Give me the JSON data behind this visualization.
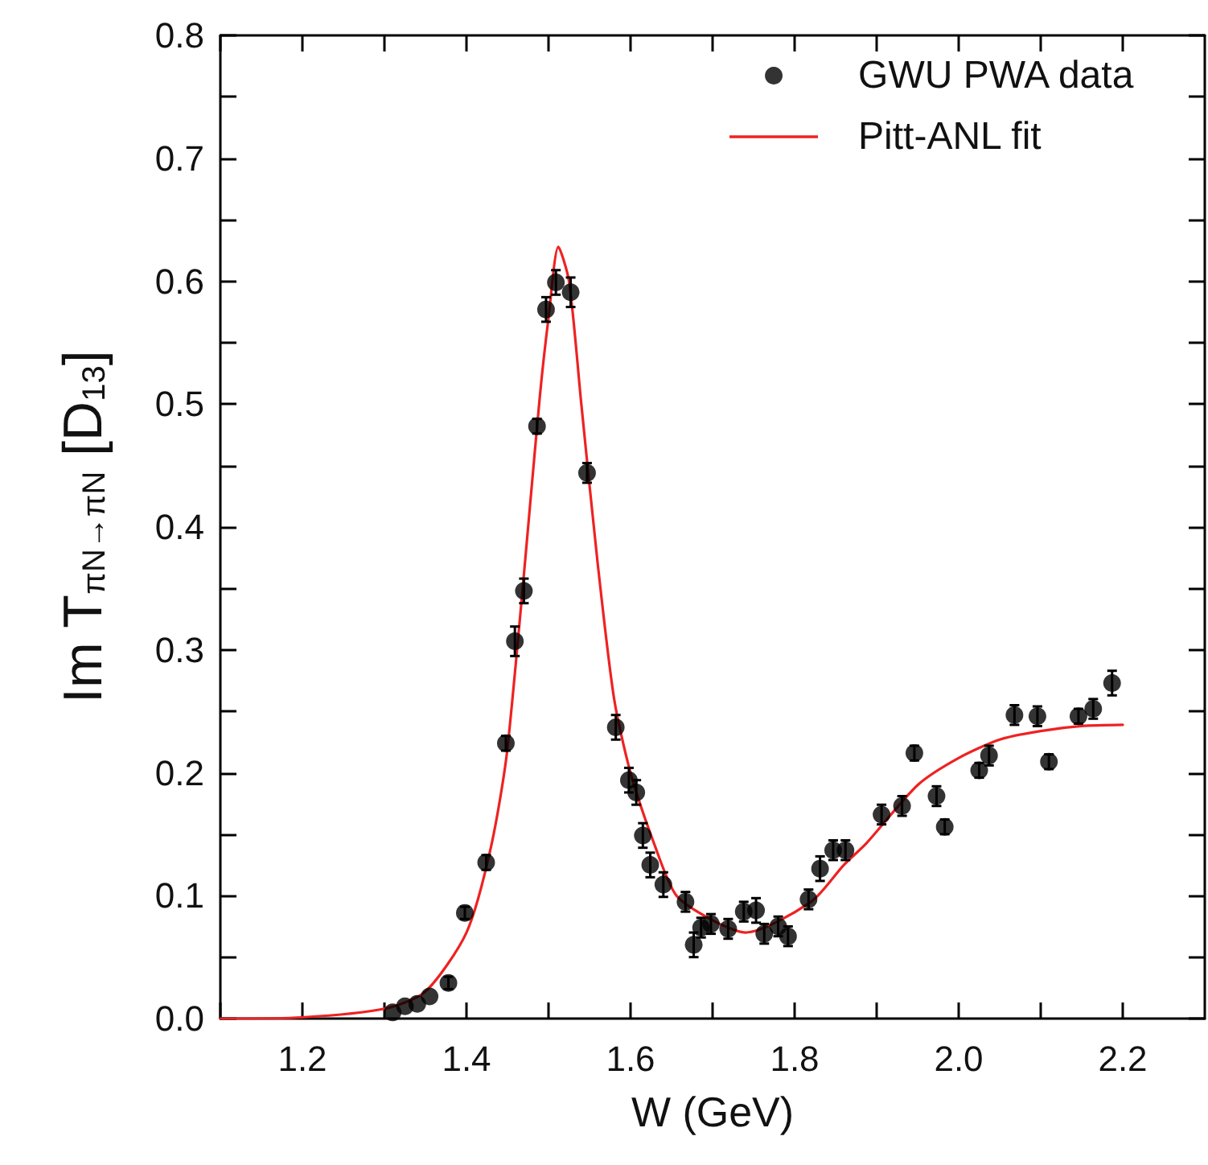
{
  "chart_data": {
    "type": "scatter",
    "xlabel": "W (GeV)",
    "ylabel": "Im T$_{πN→πN}$ [D$_{13}$]",
    "xlim": [
      1.1,
      2.3
    ],
    "ylim": [
      0,
      0.8
    ],
    "xticks": [
      {
        "value": 1.1,
        "label": null
      },
      {
        "value": 1.2,
        "label": "1.2"
      },
      {
        "value": 1.3,
        "label": null
      },
      {
        "value": 1.4,
        "label": "1.4"
      },
      {
        "value": 1.5,
        "label": null
      },
      {
        "value": 1.6,
        "label": "1.6"
      },
      {
        "value": 1.7,
        "label": null
      },
      {
        "value": 1.8,
        "label": "1.8"
      },
      {
        "value": 1.9,
        "label": null
      },
      {
        "value": 2.0,
        "label": "2.0"
      },
      {
        "value": 2.1,
        "label": null
      },
      {
        "value": 2.2,
        "label": "2.2"
      }
    ],
    "yticks": [
      {
        "value": 0,
        "label": "0.0"
      },
      {
        "value": 0.05,
        "label": null
      },
      {
        "value": 0.1,
        "label": "0.1"
      },
      {
        "value": 0.15,
        "label": null
      },
      {
        "value": 0.2,
        "label": "0.2"
      },
      {
        "value": 0.25,
        "label": null
      },
      {
        "value": 0.3,
        "label": "0.3"
      },
      {
        "value": 0.35,
        "label": null
      },
      {
        "value": 0.4,
        "label": "0.4"
      },
      {
        "value": 0.45,
        "label": null
      },
      {
        "value": 0.5,
        "label": "0.5"
      },
      {
        "value": 0.55,
        "label": null
      },
      {
        "value": 0.6,
        "label": "0.6"
      },
      {
        "value": 0.65,
        "label": null
      },
      {
        "value": 0.7,
        "label": "0.7"
      },
      {
        "value": 0.75,
        "label": null
      },
      {
        "value": 0.8,
        "label": "0.8"
      }
    ],
    "grid": false,
    "legend": "top right",
    "series": [
      {
        "name": "GWU PWA data",
        "marker": "circle",
        "color": "#000000",
        "x": [
          1.31,
          1.325,
          1.34,
          1.355,
          1.378,
          1.398,
          1.424,
          1.448,
          1.459,
          1.47,
          1.486,
          1.497,
          1.509,
          1.527,
          1.547,
          1.582,
          1.598,
          1.607,
          1.615,
          1.624,
          1.64,
          1.667,
          1.677,
          1.686,
          1.698,
          1.719,
          1.738,
          1.753,
          1.763,
          1.78,
          1.792,
          1.817,
          1.831,
          1.847,
          1.862,
          1.906,
          1.931,
          1.946,
          1.973,
          1.983,
          2.025,
          2.037,
          2.068,
          2.096,
          2.11,
          2.146,
          2.164,
          2.187
        ],
        "values": [
          0.005,
          0.01,
          0.012,
          0.018,
          0.029,
          0.086,
          0.127,
          0.224,
          0.307,
          0.348,
          0.482,
          0.577,
          0.599,
          0.591,
          0.444,
          0.237,
          0.194,
          0.184,
          0.149,
          0.125,
          0.109,
          0.095,
          0.06,
          0.074,
          0.077,
          0.073,
          0.087,
          0.088,
          0.069,
          0.075,
          0.067,
          0.097,
          0.122,
          0.137,
          0.137,
          0.166,
          0.173,
          0.216,
          0.181,
          0.156,
          0.202,
          0.214,
          0.247,
          0.246,
          0.209,
          0.246,
          0.252,
          0.273
        ],
        "errors": [
          null,
          null,
          null,
          null,
          0.005,
          0.005,
          0.006,
          0.006,
          0.012,
          0.01,
          0.006,
          0.01,
          0.01,
          0.012,
          0.008,
          0.01,
          0.01,
          0.01,
          0.01,
          0.01,
          0.01,
          0.008,
          0.01,
          0.008,
          0.008,
          0.008,
          0.008,
          0.01,
          0.008,
          0.008,
          0.008,
          0.008,
          0.01,
          0.008,
          0.008,
          0.008,
          0.008,
          0.006,
          0.008,
          0.006,
          0.006,
          0.008,
          0.008,
          0.008,
          0.006,
          0.006,
          0.008,
          0.01
        ]
      },
      {
        "name": "Pitt-ANL fit",
        "type": "line",
        "marker": "none",
        "line_style": "solid",
        "color": "#ee2222",
        "x": [
          1.1,
          1.2,
          1.3,
          1.35,
          1.4,
          1.43,
          1.45,
          1.49,
          1.5,
          1.512,
          1.525,
          1.54,
          1.56,
          1.58,
          1.6,
          1.63,
          1.656,
          1.7,
          1.74,
          1.82,
          1.86,
          1.888,
          1.95,
          2.0,
          2.05,
          2.1,
          2.15,
          2.2
        ],
        "values": [
          0,
          0.001,
          0.008,
          0.022,
          0.07,
          0.14,
          0.22,
          0.51,
          0.57,
          0.628,
          0.6,
          0.5,
          0.37,
          0.26,
          0.2,
          0.14,
          0.1,
          0.08,
          0.07,
          0.095,
          0.125,
          0.143,
          0.19,
          0.212,
          0.227,
          0.234,
          0.238,
          0.239
        ]
      }
    ]
  }
}
